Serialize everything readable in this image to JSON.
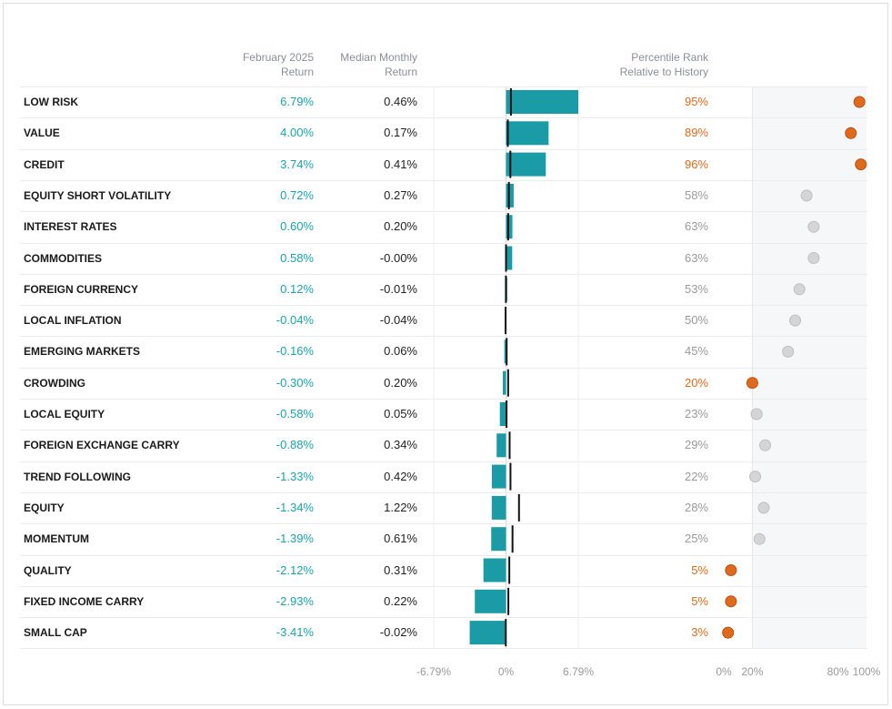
{
  "header": {
    "return_line1": "February 2025",
    "return_line2": "Return",
    "median_line1": "Median Monthly",
    "median_line2": "Return",
    "pct_line1": "Percentile Rank",
    "pct_line2": "Relative to History"
  },
  "colors": {
    "bar": "#1a9ba6",
    "return_text": "#1aa3ad",
    "highlight": "#e06a1b",
    "neutral_dot": "#d5d5d8",
    "neutral_text": "#9a9a9a"
  },
  "chart_data": {
    "type": "table",
    "return_axis": {
      "min": -6.79,
      "max": 6.79,
      "tick_labels": [
        "-6.79%",
        "0%",
        "6.79%"
      ]
    },
    "percentile_axis": {
      "min": 0,
      "max": 100,
      "tick_labels": [
        "0%",
        "20%",
        "80%",
        "100%"
      ],
      "shaded_range": [
        20,
        100
      ]
    },
    "rows": [
      {
        "label": "LOW RISK",
        "return": 6.79,
        "return_text": "6.79%",
        "median": 0.46,
        "median_text": "0.46%",
        "percentile": 95,
        "percentile_text": "95%",
        "highlight": true
      },
      {
        "label": "VALUE",
        "return": 4.0,
        "return_text": "4.00%",
        "median": 0.17,
        "median_text": "0.17%",
        "percentile": 89,
        "percentile_text": "89%",
        "highlight": true
      },
      {
        "label": "CREDIT",
        "return": 3.74,
        "return_text": "3.74%",
        "median": 0.41,
        "median_text": "0.41%",
        "percentile": 96,
        "percentile_text": "96%",
        "highlight": true
      },
      {
        "label": "EQUITY SHORT VOLATILITY",
        "return": 0.72,
        "return_text": "0.72%",
        "median": 0.27,
        "median_text": "0.27%",
        "percentile": 58,
        "percentile_text": "58%",
        "highlight": false
      },
      {
        "label": "INTEREST RATES",
        "return": 0.6,
        "return_text": "0.60%",
        "median": 0.2,
        "median_text": "0.20%",
        "percentile": 63,
        "percentile_text": "63%",
        "highlight": false
      },
      {
        "label": "COMMODITIES",
        "return": 0.58,
        "return_text": "0.58%",
        "median": 0.0,
        "median_text": "-0.00%",
        "percentile": 63,
        "percentile_text": "63%",
        "highlight": false
      },
      {
        "label": "FOREIGN CURRENCY",
        "return": 0.12,
        "return_text": "0.12%",
        "median": -0.01,
        "median_text": "-0.01%",
        "percentile": 53,
        "percentile_text": "53%",
        "highlight": false
      },
      {
        "label": "LOCAL INFLATION",
        "return": -0.04,
        "return_text": "-0.04%",
        "median": -0.04,
        "median_text": "-0.04%",
        "percentile": 50,
        "percentile_text": "50%",
        "highlight": false
      },
      {
        "label": "EMERGING MARKETS",
        "return": -0.16,
        "return_text": "-0.16%",
        "median": 0.06,
        "median_text": "0.06%",
        "percentile": 45,
        "percentile_text": "45%",
        "highlight": false
      },
      {
        "label": "CROWDING",
        "return": -0.3,
        "return_text": "-0.30%",
        "median": 0.2,
        "median_text": "0.20%",
        "percentile": 20,
        "percentile_text": "20%",
        "highlight": true
      },
      {
        "label": "LOCAL EQUITY",
        "return": -0.58,
        "return_text": "-0.58%",
        "median": 0.05,
        "median_text": "0.05%",
        "percentile": 23,
        "percentile_text": "23%",
        "highlight": false
      },
      {
        "label": "FOREIGN EXCHANGE CARRY",
        "return": -0.88,
        "return_text": "-0.88%",
        "median": 0.34,
        "median_text": "0.34%",
        "percentile": 29,
        "percentile_text": "29%",
        "highlight": false
      },
      {
        "label": "TREND FOLLOWING",
        "return": -1.33,
        "return_text": "-1.33%",
        "median": 0.42,
        "median_text": "0.42%",
        "percentile": 22,
        "percentile_text": "22%",
        "highlight": false
      },
      {
        "label": "EQUITY",
        "return": -1.34,
        "return_text": "-1.34%",
        "median": 1.22,
        "median_text": "1.22%",
        "percentile": 28,
        "percentile_text": "28%",
        "highlight": false
      },
      {
        "label": "MOMENTUM",
        "return": -1.39,
        "return_text": "-1.39%",
        "median": 0.61,
        "median_text": "0.61%",
        "percentile": 25,
        "percentile_text": "25%",
        "highlight": false
      },
      {
        "label": "QUALITY",
        "return": -2.12,
        "return_text": "-2.12%",
        "median": 0.31,
        "median_text": "0.31%",
        "percentile": 5,
        "percentile_text": "5%",
        "highlight": true
      },
      {
        "label": "FIXED INCOME CARRY",
        "return": -2.93,
        "return_text": "-2.93%",
        "median": 0.22,
        "median_text": "0.22%",
        "percentile": 5,
        "percentile_text": "5%",
        "highlight": true
      },
      {
        "label": "SMALL CAP",
        "return": -3.41,
        "return_text": "-3.41%",
        "median": -0.02,
        "median_text": "-0.02%",
        "percentile": 3,
        "percentile_text": "3%",
        "highlight": true
      }
    ]
  }
}
